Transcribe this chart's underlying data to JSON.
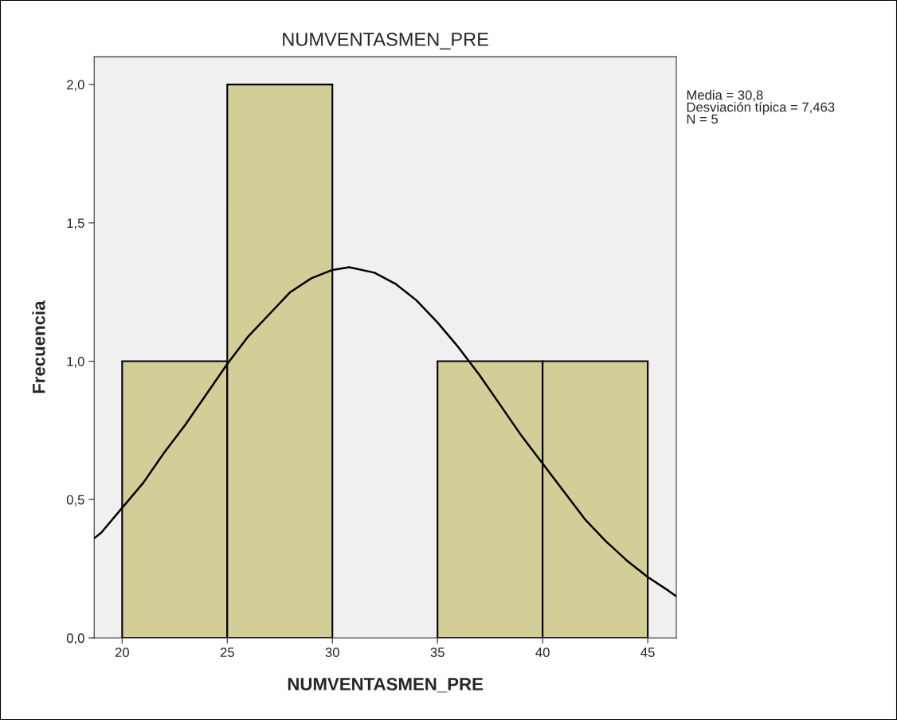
{
  "chart_data": {
    "type": "histogram",
    "title": "NUMVENTASMEN_PRE",
    "xlabel": "NUMVENTASMEN_PRE",
    "ylabel": "Frecuencia",
    "annotations": [
      "Media = 30,8\nDesviación típica = 7,463\nN = 5"
    ],
    "bins": [
      20,
      25,
      30,
      35,
      40,
      45
    ],
    "values": [
      1,
      2,
      0,
      1,
      1
    ],
    "color": "#d3ce97",
    "series": [
      {
        "type": "line",
        "color": "#000000",
        "x": [
          18.67,
          19,
          20,
          21,
          22,
          23,
          24,
          25,
          26,
          27,
          28,
          29,
          30,
          30.8,
          32,
          33,
          34,
          35,
          36,
          37,
          38,
          39,
          40,
          41,
          42,
          43,
          44,
          45,
          46,
          46.36
        ],
        "values": [
          0.36,
          0.38,
          0.47,
          0.56,
          0.67,
          0.77,
          0.88,
          0.99,
          1.09,
          1.17,
          1.25,
          1.3,
          1.33,
          1.34,
          1.32,
          1.28,
          1.22,
          1.14,
          1.05,
          0.95,
          0.84,
          0.73,
          0.63,
          0.53,
          0.43,
          0.35,
          0.28,
          0.22,
          0.17,
          0.15
        ]
      }
    ],
    "xlim": [
      18.67,
      46.36
    ],
    "ylim": [
      0,
      2.1
    ],
    "xticks": [
      20,
      25,
      30,
      35,
      40,
      45
    ],
    "yticks": [
      {
        "value": 0,
        "label": "0,0"
      },
      {
        "value": 0.5,
        "label": "0,5"
      },
      {
        "value": 1,
        "label": "1,0"
      },
      {
        "value": 1.5,
        "label": "1,5"
      },
      {
        "value": 2,
        "label": "2,0"
      }
    ],
    "grid": false,
    "legend": false
  }
}
